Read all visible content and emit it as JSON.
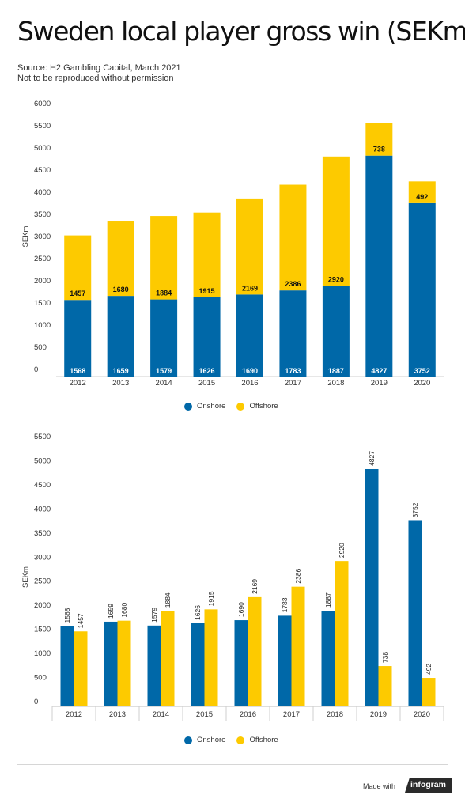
{
  "header": {
    "title": "Sweden local player gross win (SEKm)",
    "source_line1": "Source: H2 Gambling Capital, March 2021",
    "source_line2": "Not to be reproduced without permission"
  },
  "colors": {
    "onshore": "#0068a8",
    "offshore": "#fdca00"
  },
  "legend": {
    "onshore": "Onshore",
    "offshore": "Offshore"
  },
  "footer": {
    "made_with": "Made with",
    "brand": "infogram"
  },
  "chart_data": [
    {
      "type": "bar",
      "stacked": true,
      "ylabel": "SEKm",
      "ylim": [
        0,
        6000
      ],
      "yticks": [
        0,
        500,
        1000,
        1500,
        2000,
        2500,
        3000,
        3500,
        4000,
        4500,
        5000,
        5500,
        6000
      ],
      "categories": [
        "2012",
        "2013",
        "2014",
        "2015",
        "2016",
        "2017",
        "2018",
        "2019",
        "2020"
      ],
      "series": [
        {
          "name": "Onshore",
          "values": [
            1568,
            1659,
            1579,
            1626,
            1690,
            1783,
            1887,
            4827,
            3752
          ]
        },
        {
          "name": "Offshore",
          "values": [
            1457,
            1680,
            1884,
            1915,
            2169,
            2386,
            2920,
            738,
            492
          ]
        }
      ],
      "legend_position": "bottom-center"
    },
    {
      "type": "bar",
      "stacked": false,
      "ylabel": "SEKm",
      "ylim": [
        0,
        5500
      ],
      "yticks": [
        0,
        500,
        1000,
        1500,
        2000,
        2500,
        3000,
        3500,
        4000,
        4500,
        5000,
        5500
      ],
      "categories": [
        "2012",
        "2013",
        "2014",
        "2015",
        "2016",
        "2017",
        "2018",
        "2019",
        "2020"
      ],
      "series": [
        {
          "name": "Onshore",
          "values": [
            1568,
            1659,
            1579,
            1626,
            1690,
            1783,
            1887,
            4827,
            3752
          ]
        },
        {
          "name": "Offshore",
          "values": [
            1457,
            1680,
            1884,
            1915,
            2169,
            2386,
            2920,
            738,
            492
          ]
        }
      ],
      "legend_position": "bottom-center"
    }
  ]
}
